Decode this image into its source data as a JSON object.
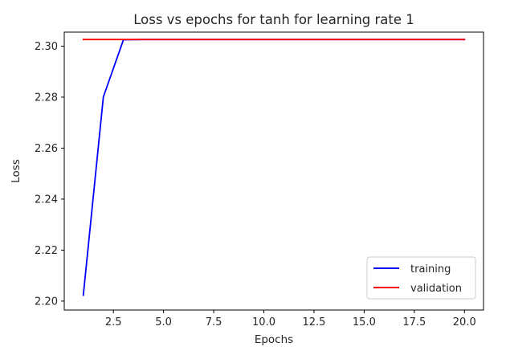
{
  "chart_data": {
    "type": "line",
    "title": "Loss vs epochs for tanh for learning rate 1",
    "xlabel": "Epochs",
    "ylabel": "Loss",
    "xlim": [
      0.05,
      20.95
    ],
    "ylim": [
      2.1965,
      2.3055
    ],
    "xticks": [
      2.5,
      5.0,
      7.5,
      10.0,
      12.5,
      15.0,
      17.5,
      20.0
    ],
    "xtick_labels": [
      "2.5",
      "5.0",
      "7.5",
      "10.0",
      "12.5",
      "15.0",
      "17.5",
      "20.0"
    ],
    "yticks": [
      2.2,
      2.22,
      2.24,
      2.26,
      2.28,
      2.3
    ],
    "ytick_labels": [
      "2.20",
      "2.22",
      "2.24",
      "2.26",
      "2.28",
      "2.30"
    ],
    "grid": false,
    "legend_position": "lower right",
    "x": [
      1,
      2,
      3,
      4,
      5,
      6,
      7,
      8,
      9,
      10,
      11,
      12,
      13,
      14,
      15,
      16,
      17,
      18,
      19,
      20
    ],
    "series": [
      {
        "name": "training",
        "color": "#0000ff",
        "values": [
          2.2023,
          2.2801,
          2.3025,
          2.3026,
          2.3026,
          2.3026,
          2.3026,
          2.3026,
          2.3026,
          2.3026,
          2.3026,
          2.3026,
          2.3026,
          2.3026,
          2.3026,
          2.3026,
          2.3026,
          2.3026,
          2.3026,
          2.3026
        ]
      },
      {
        "name": "validation",
        "color": "#ff0000",
        "values": [
          2.3026,
          2.3026,
          2.3026,
          2.3026,
          2.3026,
          2.3026,
          2.3026,
          2.3026,
          2.3026,
          2.3026,
          2.3026,
          2.3026,
          2.3026,
          2.3026,
          2.3026,
          2.3026,
          2.3026,
          2.3026,
          2.3026,
          2.3026
        ]
      }
    ]
  }
}
